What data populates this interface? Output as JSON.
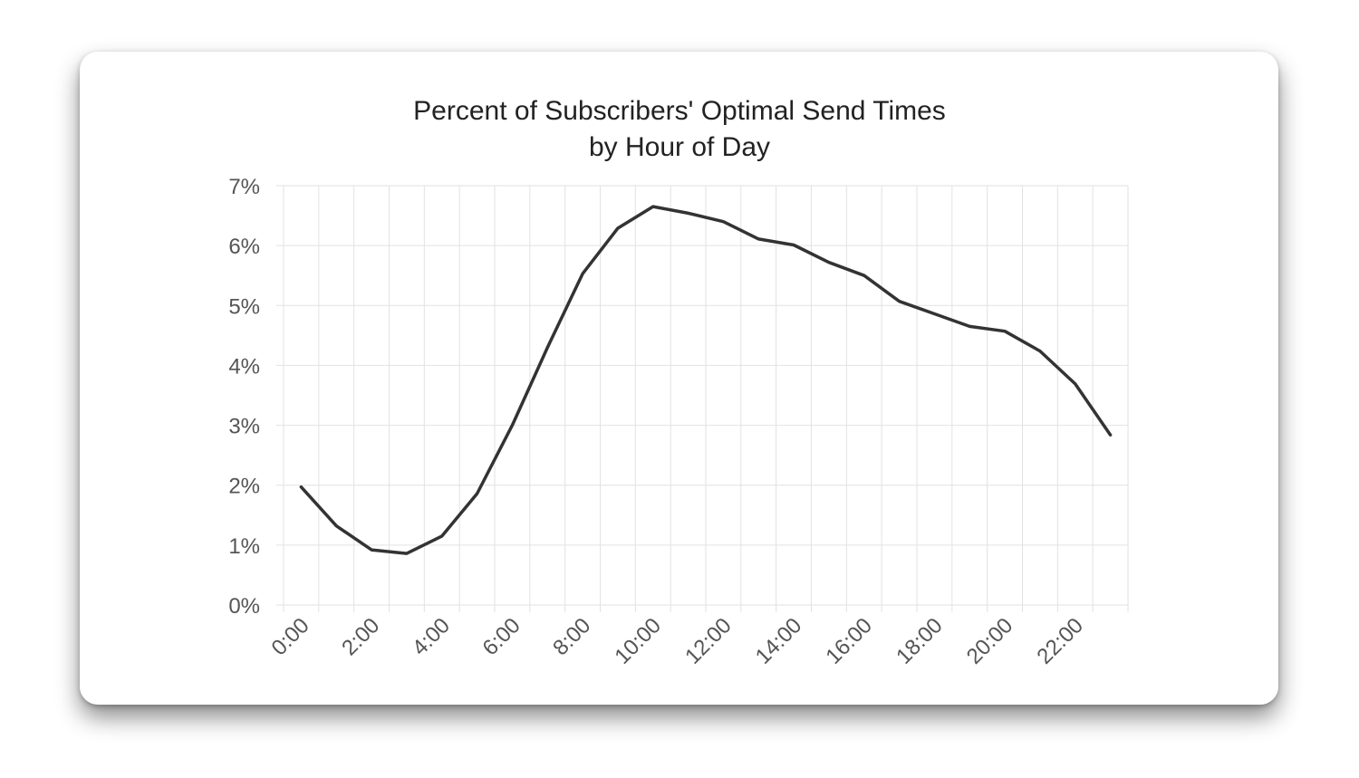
{
  "chart_data": {
    "type": "line",
    "title_line1": "Percent of Subscribers' Optimal Send Times",
    "title_line2": "by Hour of Day",
    "xlabel": "",
    "ylabel": "",
    "x": [
      "0:00",
      "1:00",
      "2:00",
      "3:00",
      "4:00",
      "5:00",
      "6:00",
      "7:00",
      "8:00",
      "9:00",
      "10:00",
      "11:00",
      "12:00",
      "13:00",
      "14:00",
      "15:00",
      "16:00",
      "17:00",
      "18:00",
      "19:00",
      "20:00",
      "21:00",
      "22:00",
      "23:00"
    ],
    "x_tick_labels": [
      "0:00",
      "2:00",
      "4:00",
      "6:00",
      "8:00",
      "10:00",
      "12:00",
      "14:00",
      "16:00",
      "18:00",
      "20:00",
      "22:00"
    ],
    "y_tick_labels": [
      "0%",
      "1%",
      "2%",
      "3%",
      "4%",
      "5%",
      "6%",
      "7%"
    ],
    "ylim": [
      0,
      7
    ],
    "grid": true,
    "series": [
      {
        "values": [
          1.97,
          1.32,
          0.92,
          0.86,
          1.15,
          1.86,
          3.0,
          4.3,
          5.53,
          6.29,
          6.65,
          6.54,
          6.4,
          6.11,
          6.01,
          5.72,
          5.5,
          5.07,
          4.86,
          4.65,
          4.57,
          4.24,
          3.69,
          2.84
        ],
        "color": "#333333"
      }
    ]
  }
}
